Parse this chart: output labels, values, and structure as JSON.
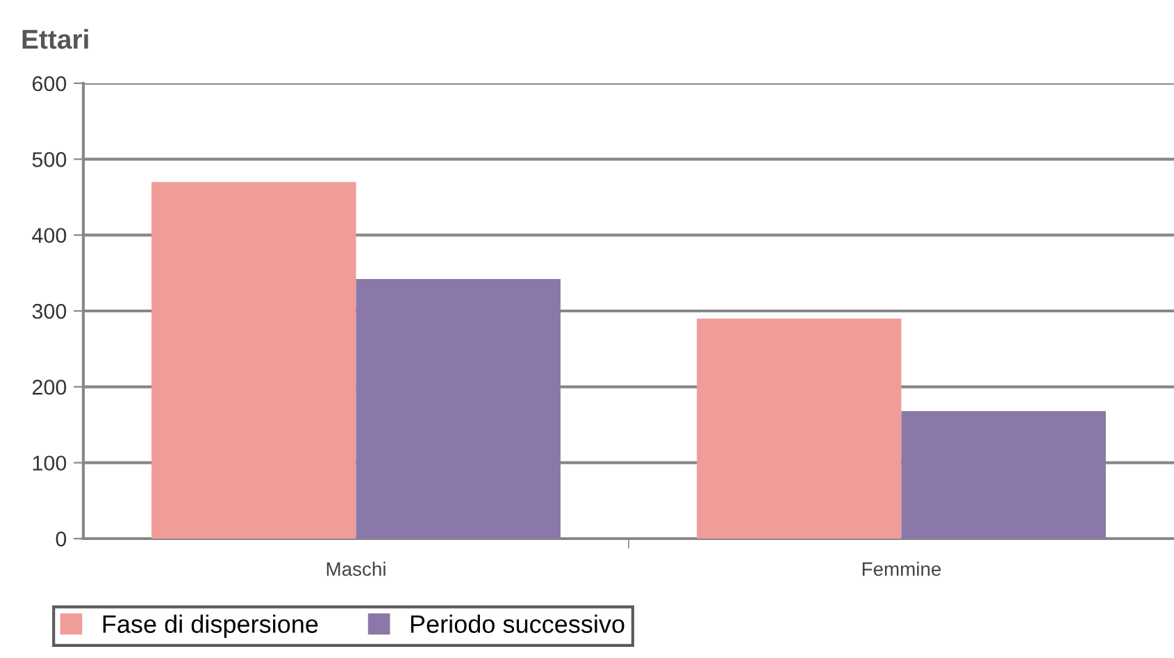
{
  "chart_data": {
    "type": "bar",
    "ylabel": "Ettari",
    "categories": [
      "Maschi",
      "Femmine"
    ],
    "series": [
      {
        "name": "Fase di dispersione",
        "color": "#f09c98",
        "values": [
          470,
          290
        ]
      },
      {
        "name": "Periodo successivo",
        "color": "#8a78a8",
        "values": [
          342,
          168
        ]
      }
    ],
    "ylim": [
      0,
      600
    ],
    "yticks": [
      0,
      100,
      200,
      300,
      400,
      500,
      600
    ],
    "grid": "y",
    "legend": "bottom left"
  }
}
